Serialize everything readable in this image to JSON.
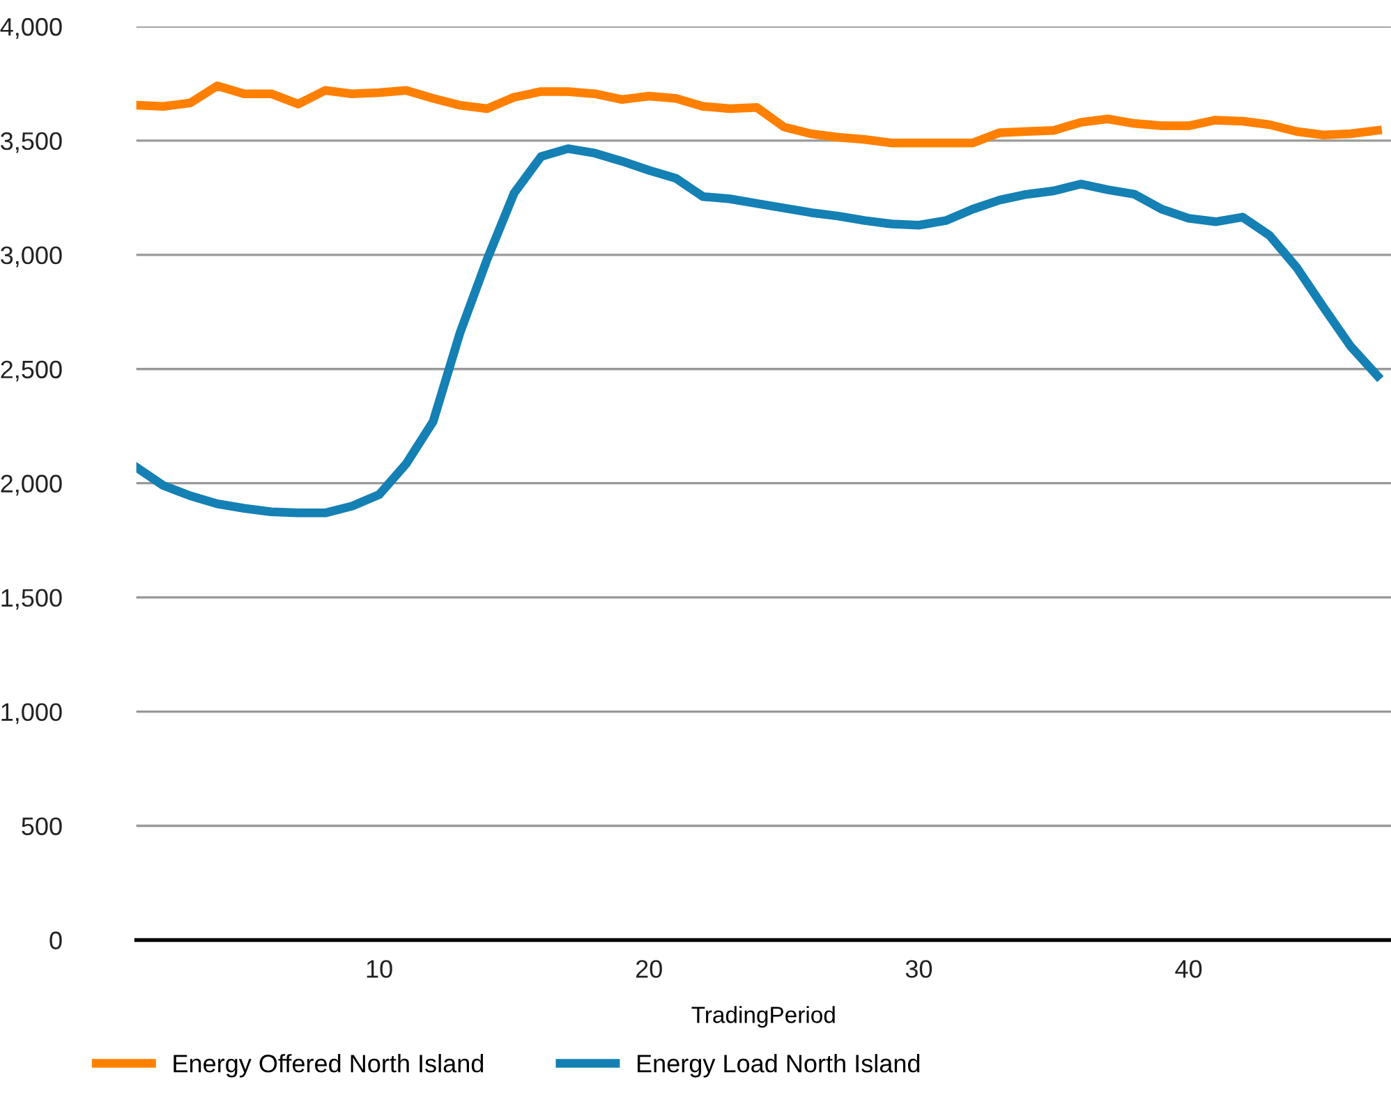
{
  "chart_data": {
    "type": "line",
    "xlabel": "TradingPeriod",
    "x": [
      1,
      2,
      3,
      4,
      5,
      6,
      7,
      8,
      9,
      10,
      11,
      12,
      13,
      14,
      15,
      16,
      17,
      18,
      19,
      20,
      21,
      22,
      23,
      24,
      25,
      26,
      27,
      28,
      29,
      30,
      31,
      32,
      33,
      34,
      35,
      36,
      37,
      38,
      39,
      40,
      41,
      42,
      43,
      44,
      45,
      46,
      47
    ],
    "series": [
      {
        "name": "Energy Offered North Island",
        "color": "#ff8000",
        "values": [
          3655,
          3650,
          3665,
          3740,
          3705,
          3705,
          3660,
          3720,
          3705,
          3710,
          3720,
          3685,
          3655,
          3640,
          3690,
          3715,
          3715,
          3705,
          3680,
          3695,
          3685,
          3650,
          3640,
          3645,
          3560,
          3530,
          3515,
          3505,
          3490,
          3490,
          3490,
          3490,
          3535,
          3540,
          3545,
          3580,
          3595,
          3575,
          3565,
          3565,
          3590,
          3585,
          3570,
          3540,
          3525,
          3530,
          3545
        ]
      },
      {
        "name": "Energy Load North Island",
        "color": "#1580b4",
        "values": [
          2070,
          1990,
          1945,
          1910,
          1890,
          1875,
          1870,
          1870,
          1900,
          1950,
          2085,
          2270,
          2660,
          2980,
          3270,
          3430,
          3465,
          3445,
          3410,
          3370,
          3335,
          3255,
          3245,
          3225,
          3205,
          3185,
          3170,
          3150,
          3135,
          3130,
          3150,
          3200,
          3240,
          3265,
          3280,
          3310,
          3285,
          3265,
          3200,
          3160,
          3145,
          3165,
          3085,
          2945,
          2770,
          2600,
          2470
        ]
      }
    ],
    "xlim": [
      1,
      47.5
    ],
    "xticks": [
      10,
      20,
      30,
      40
    ],
    "ylim": [
      0,
      4000
    ],
    "yticks": [
      {
        "value": 0,
        "label": "0"
      },
      {
        "value": 500,
        "label": "500"
      },
      {
        "value": 1000,
        "label": "1,000"
      },
      {
        "value": 1500,
        "label": "1,500"
      },
      {
        "value": 2000,
        "label": "2,000"
      },
      {
        "value": 2500,
        "label": "2,500"
      },
      {
        "value": 3000,
        "label": "3,000"
      },
      {
        "value": 3500,
        "label": "3,500"
      },
      {
        "value": 4000,
        "label": "4,000"
      }
    ],
    "grid": "y",
    "legend": "bottom",
    "marker": "none",
    "line_style": "solid"
  }
}
